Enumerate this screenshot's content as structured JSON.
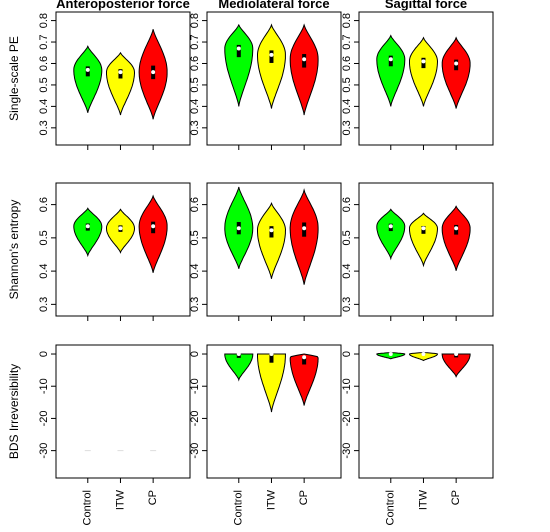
{
  "chart_data": [
    {
      "type": "violin",
      "title": "Anteroposterior force",
      "ylabel": "Single-scale PE",
      "colors": [
        "#00ff00",
        "#ffff00",
        "#ff0000"
      ],
      "ylim": [
        0.22,
        0.84
      ],
      "yticks": [
        0.3,
        0.4,
        0.5,
        0.6,
        0.7,
        0.8
      ],
      "min": [
        0.37,
        0.36,
        0.34
      ],
      "median": [
        0.57,
        0.56,
        0.56
      ],
      "max": [
        0.68,
        0.65,
        0.76
      ]
    },
    {
      "type": "violin",
      "title": "Mediolateral force",
      "colors": [
        "#00ff00",
        "#ffff00",
        "#ff0000"
      ],
      "ylim": [
        0.22,
        0.84
      ],
      "yticks": [
        0.3,
        0.4,
        0.5,
        0.6,
        0.7,
        0.8
      ],
      "min": [
        0.4,
        0.39,
        0.36
      ],
      "median": [
        0.67,
        0.64,
        0.62
      ],
      "max": [
        0.78,
        0.78,
        0.78
      ]
    },
    {
      "type": "violin",
      "title": "Sagittal force",
      "colors": [
        "#00ff00",
        "#ffff00",
        "#ff0000"
      ],
      "ylim": [
        0.22,
        0.84
      ],
      "yticks": [
        0.3,
        0.4,
        0.5,
        0.6,
        0.7,
        0.8
      ],
      "min": [
        0.4,
        0.4,
        0.39
      ],
      "median": [
        0.62,
        0.61,
        0.6
      ],
      "max": [
        0.73,
        0.72,
        0.72
      ]
    },
    {
      "type": "violin",
      "ylabel": "Shannon's entropy",
      "colors": [
        "#00ff00",
        "#ffff00",
        "#ff0000"
      ],
      "ylim": [
        0.265,
        0.665
      ],
      "yticks": [
        0.3,
        0.4,
        0.5,
        0.6
      ],
      "min": [
        0.447,
        0.456,
        0.395
      ],
      "median": [
        0.535,
        0.529,
        0.535
      ],
      "max": [
        0.589,
        0.586,
        0.626
      ]
    },
    {
      "type": "violin",
      "colors": [
        "#00ff00",
        "#ffff00",
        "#ff0000"
      ],
      "ylim": [
        0.265,
        0.665
      ],
      "yticks": [
        0.3,
        0.4,
        0.5,
        0.6
      ],
      "min": [
        0.407,
        0.377,
        0.359
      ],
      "median": [
        0.529,
        0.523,
        0.529
      ],
      "max": [
        0.653,
        0.604,
        0.644
      ]
    },
    {
      "type": "violin",
      "colors": [
        "#00ff00",
        "#ffff00",
        "#ff0000"
      ],
      "ylim": [
        0.265,
        0.665
      ],
      "yticks": [
        0.3,
        0.4,
        0.5,
        0.6
      ],
      "min": [
        0.438,
        0.417,
        0.401
      ],
      "median": [
        0.535,
        0.529,
        0.529
      ],
      "max": [
        0.586,
        0.574,
        0.595
      ]
    },
    {
      "type": "violin",
      "ylabel": "BDS Irreversibility",
      "categories": [
        "Control",
        "ITW",
        "CP"
      ],
      "colors": [
        "#00ff00",
        "#ffff00",
        "#ff0000"
      ],
      "ylim": [
        -38.5,
        2.8
      ],
      "yticks": [
        -30,
        -20,
        -10,
        0
      ],
      "min": [
        -30,
        -30,
        -30
      ],
      "median": [
        -30,
        -30,
        -30
      ],
      "max": [
        -30,
        -30,
        -30
      ]
    },
    {
      "type": "violin",
      "categories": [
        "Control",
        "ITW",
        "CP"
      ],
      "colors": [
        "#00ff00",
        "#ffff00",
        "#ff0000"
      ],
      "ylim": [
        -38.5,
        2.8
      ],
      "yticks": [
        -30,
        -20,
        -10,
        0
      ],
      "min": [
        -8,
        -18,
        -16
      ],
      "median": [
        0,
        0,
        -1
      ],
      "max": [
        0,
        0,
        0
      ]
    },
    {
      "type": "violin",
      "categories": [
        "Control",
        "ITW",
        "CP"
      ],
      "colors": [
        "#00ff00",
        "#ffff00",
        "#ff0000"
      ],
      "ylim": [
        -38.5,
        2.8
      ],
      "yticks": [
        -30,
        -20,
        -10,
        0
      ],
      "min": [
        -1.5,
        -2,
        -7
      ],
      "median": [
        0,
        0,
        0
      ],
      "max": [
        0.5,
        0.5,
        0
      ]
    }
  ]
}
